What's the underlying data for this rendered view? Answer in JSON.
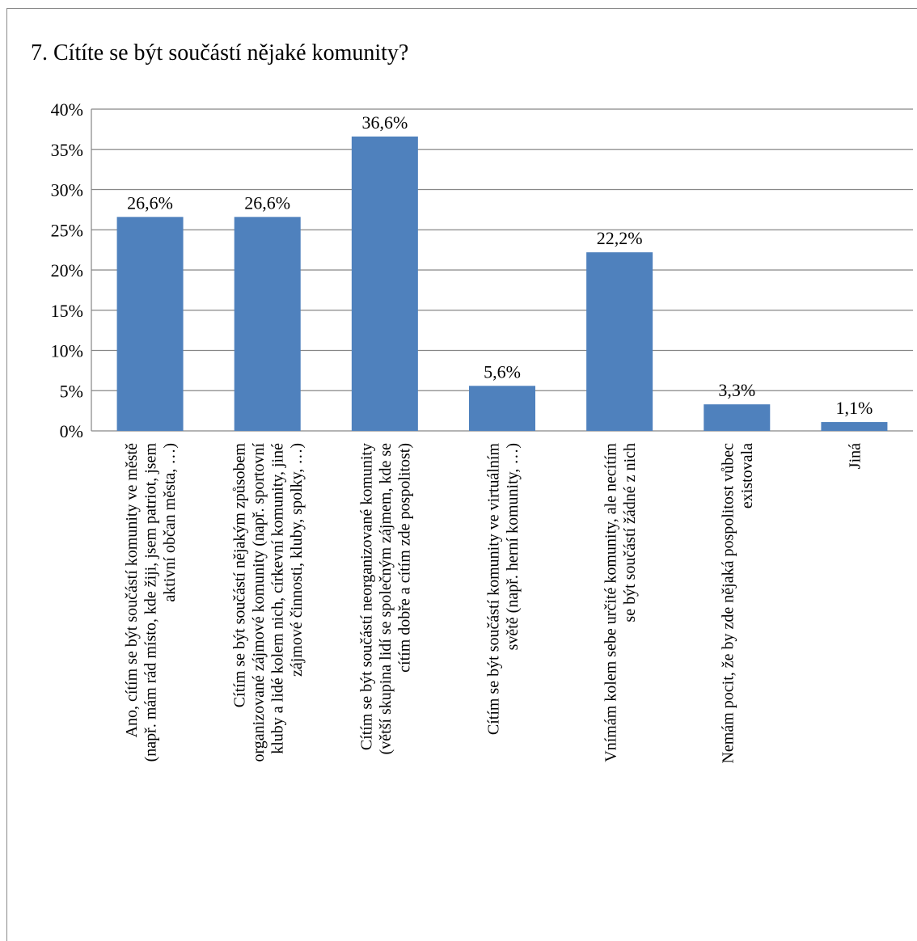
{
  "chart_data": {
    "type": "bar",
    "title": "7. Cítíte se být součástí nějaké komunity?",
    "xlabel": "",
    "ylabel": "",
    "ylim": [
      0,
      40
    ],
    "y_ticks": [
      "0%",
      "5%",
      "10%",
      "15%",
      "20%",
      "25%",
      "30%",
      "35%",
      "40%"
    ],
    "grid": true,
    "legend": "none",
    "bar_color": "#4f81bd",
    "categories": [
      [
        "Ano, cítím se být součástí komunity ve městě",
        "(např. mám rád místo, kde žiji, jsem patriot, jsem",
        "aktivní občan města, …)"
      ],
      [
        "Cítím se být součástí nějakým způsobem",
        "organizované zájmové komunity (např. sportovní",
        "kluby a lidé kolem nich, církevní komunity, jiné",
        "zájmové činnosti, kluby, spolky, …)"
      ],
      [
        "Cítím se být součástí neorganizované komunity",
        "(větší skupina lidí se společným zájmem, kde se",
        "cítím dobře a cítím zde pospolitost)"
      ],
      [
        "Cítím se být součástí komunity ve virtuálním",
        "světě (např. herní komunity, …)"
      ],
      [
        "Vnímám kolem sebe určité komunity, ale necítím",
        "se být součástí žádné z nich"
      ],
      [
        "Nemám pocit, že by zde nějaká pospolitost vůbec",
        "existovala"
      ],
      [
        "Jiná"
      ]
    ],
    "values": [
      26.6,
      26.6,
      36.6,
      5.6,
      22.2,
      3.3,
      1.1
    ],
    "data_labels": [
      "26,6%",
      "26,6%",
      "36,6%",
      "5,6%",
      "22,2%",
      "3,3%",
      "1,1%"
    ]
  }
}
